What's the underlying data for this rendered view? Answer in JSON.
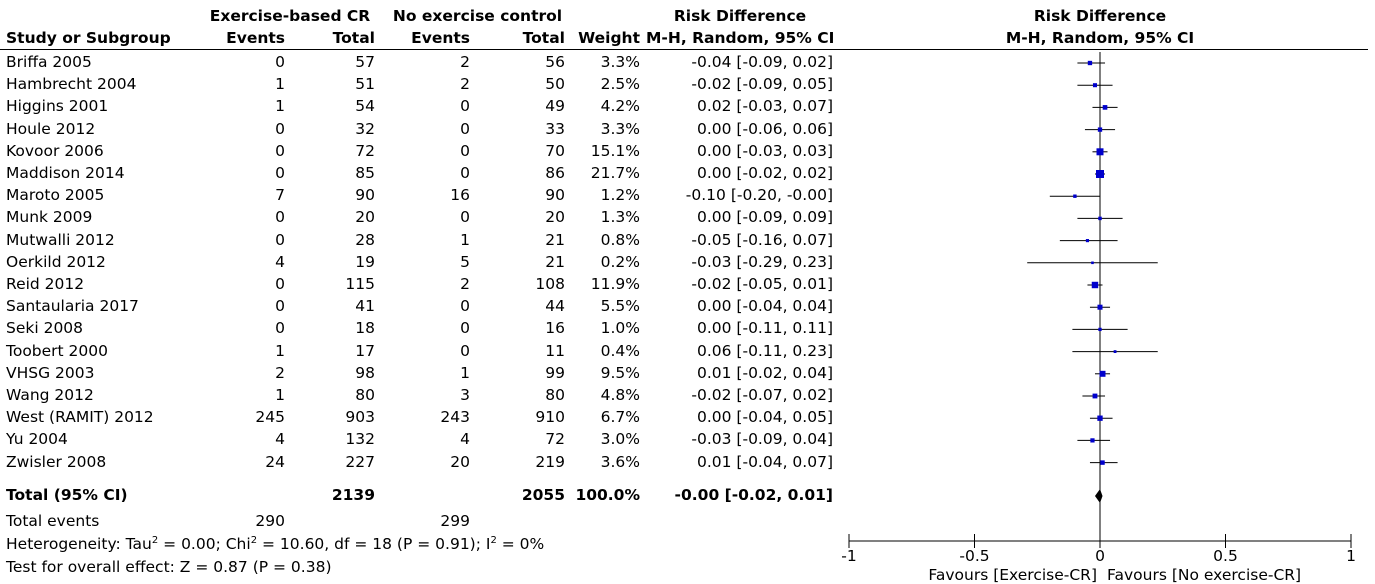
{
  "headers": {
    "group1": "Exercise-based CR",
    "group2": "No exercise control",
    "effect_group": "Risk Difference",
    "study": "Study or Subgroup",
    "events1": "Events",
    "total1": "Total",
    "events2": "Events",
    "total2": "Total",
    "weight": "Weight",
    "method": "M-H, Random, 95% CI",
    "plot_title": "Risk Difference",
    "plot_method": "M-H, Random, 95% CI"
  },
  "total_row": {
    "label": "Total (95% CI)",
    "total1": "2139",
    "total2": "2055",
    "weight": "100.0%",
    "ci": "-0.00 [-0.02, 0.01]"
  },
  "events_row": {
    "label": "Total events",
    "events1": "290",
    "events2": "299"
  },
  "heterogeneity": {
    "prefix": "Heterogeneity: Tau",
    "sup1": "2",
    "mid": " = 0.00; Chi",
    "sup2": "2",
    "mid2": " = 10.60, df = 18 (P = 0.91); I",
    "sup3": "2",
    "suffix": " = 0%"
  },
  "overall_effect": "Test for overall effect: Z = 0.87 (P = 0.38)",
  "favours": {
    "left": "Favours [Exercise-CR]",
    "right": "Favours [No exercise-CR]"
  },
  "chart_data": {
    "type": "forest",
    "axis": {
      "min": -1,
      "max": 1,
      "ticks": [
        -1,
        -0.5,
        0,
        0.5,
        1
      ],
      "tick_labels": [
        "-1",
        "-0.5",
        "0",
        "0.5",
        "1"
      ]
    },
    "summary": {
      "est": -0.0,
      "lo": -0.02,
      "hi": 0.01
    },
    "studies": [
      {
        "name": "Briffa 2005",
        "e1": "0",
        "t1": "57",
        "e2": "2",
        "t2": "56",
        "weight": "3.3%",
        "ci": "-0.04 [-0.09, 0.02]",
        "est": -0.04,
        "lo": -0.09,
        "hi": 0.02
      },
      {
        "name": "Hambrecht 2004",
        "e1": "1",
        "t1": "51",
        "e2": "2",
        "t2": "50",
        "weight": "2.5%",
        "ci": "-0.02 [-0.09, 0.05]",
        "est": -0.02,
        "lo": -0.09,
        "hi": 0.05
      },
      {
        "name": "Higgins 2001",
        "e1": "1",
        "t1": "54",
        "e2": "0",
        "t2": "49",
        "weight": "4.2%",
        "ci": "0.02 [-0.03, 0.07]",
        "est": 0.02,
        "lo": -0.03,
        "hi": 0.07
      },
      {
        "name": "Houle 2012",
        "e1": "0",
        "t1": "32",
        "e2": "0",
        "t2": "33",
        "weight": "3.3%",
        "ci": "0.00 [-0.06, 0.06]",
        "est": 0.0,
        "lo": -0.06,
        "hi": 0.06
      },
      {
        "name": "Kovoor 2006",
        "e1": "0",
        "t1": "72",
        "e2": "0",
        "t2": "70",
        "weight": "15.1%",
        "ci": "0.00 [-0.03, 0.03]",
        "est": 0.0,
        "lo": -0.03,
        "hi": 0.03
      },
      {
        "name": "Maddison 2014",
        "e1": "0",
        "t1": "85",
        "e2": "0",
        "t2": "86",
        "weight": "21.7%",
        "ci": "0.00 [-0.02, 0.02]",
        "est": 0.0,
        "lo": -0.02,
        "hi": 0.02
      },
      {
        "name": "Maroto 2005",
        "e1": "7",
        "t1": "90",
        "e2": "16",
        "t2": "90",
        "weight": "1.2%",
        "ci": "-0.10 [-0.20, -0.00]",
        "est": -0.1,
        "lo": -0.2,
        "hi": -0.0
      },
      {
        "name": "Munk 2009",
        "e1": "0",
        "t1": "20",
        "e2": "0",
        "t2": "20",
        "weight": "1.3%",
        "ci": "0.00 [-0.09, 0.09]",
        "est": 0.0,
        "lo": -0.09,
        "hi": 0.09
      },
      {
        "name": "Mutwalli 2012",
        "e1": "0",
        "t1": "28",
        "e2": "1",
        "t2": "21",
        "weight": "0.8%",
        "ci": "-0.05 [-0.16, 0.07]",
        "est": -0.05,
        "lo": -0.16,
        "hi": 0.07
      },
      {
        "name": "Oerkild 2012",
        "e1": "4",
        "t1": "19",
        "e2": "5",
        "t2": "21",
        "weight": "0.2%",
        "ci": "-0.03 [-0.29, 0.23]",
        "est": -0.03,
        "lo": -0.29,
        "hi": 0.23
      },
      {
        "name": "Reid 2012",
        "e1": "0",
        "t1": "115",
        "e2": "2",
        "t2": "108",
        "weight": "11.9%",
        "ci": "-0.02 [-0.05, 0.01]",
        "est": -0.02,
        "lo": -0.05,
        "hi": 0.01
      },
      {
        "name": "Santaularia 2017",
        "e1": "0",
        "t1": "41",
        "e2": "0",
        "t2": "44",
        "weight": "5.5%",
        "ci": "0.00 [-0.04, 0.04]",
        "est": 0.0,
        "lo": -0.04,
        "hi": 0.04
      },
      {
        "name": "Seki 2008",
        "e1": "0",
        "t1": "18",
        "e2": "0",
        "t2": "16",
        "weight": "1.0%",
        "ci": "0.00 [-0.11, 0.11]",
        "est": 0.0,
        "lo": -0.11,
        "hi": 0.11
      },
      {
        "name": "Toobert 2000",
        "e1": "1",
        "t1": "17",
        "e2": "0",
        "t2": "11",
        "weight": "0.4%",
        "ci": "0.06 [-0.11, 0.23]",
        "est": 0.06,
        "lo": -0.11,
        "hi": 0.23
      },
      {
        "name": "VHSG 2003",
        "e1": "2",
        "t1": "98",
        "e2": "1",
        "t2": "99",
        "weight": "9.5%",
        "ci": "0.01 [-0.02, 0.04]",
        "est": 0.01,
        "lo": -0.02,
        "hi": 0.04
      },
      {
        "name": "Wang 2012",
        "e1": "1",
        "t1": "80",
        "e2": "3",
        "t2": "80",
        "weight": "4.8%",
        "ci": "-0.02 [-0.07, 0.02]",
        "est": -0.02,
        "lo": -0.07,
        "hi": 0.02
      },
      {
        "name": "West (RAMIT) 2012",
        "e1": "245",
        "t1": "903",
        "e2": "243",
        "t2": "910",
        "weight": "6.7%",
        "ci": "0.00 [-0.04, 0.05]",
        "est": 0.0,
        "lo": -0.04,
        "hi": 0.05
      },
      {
        "name": "Yu 2004",
        "e1": "4",
        "t1": "132",
        "e2": "4",
        "t2": "72",
        "weight": "3.0%",
        "ci": "-0.03 [-0.09, 0.04]",
        "est": -0.03,
        "lo": -0.09,
        "hi": 0.04
      },
      {
        "name": "Zwisler 2008",
        "e1": "24",
        "t1": "227",
        "e2": "20",
        "t2": "219",
        "weight": "3.6%",
        "ci": "0.01 [-0.04, 0.07]",
        "est": 0.01,
        "lo": -0.04,
        "hi": 0.07
      }
    ],
    "colors": {
      "marker": "#0000cc",
      "line": "#000000"
    }
  }
}
